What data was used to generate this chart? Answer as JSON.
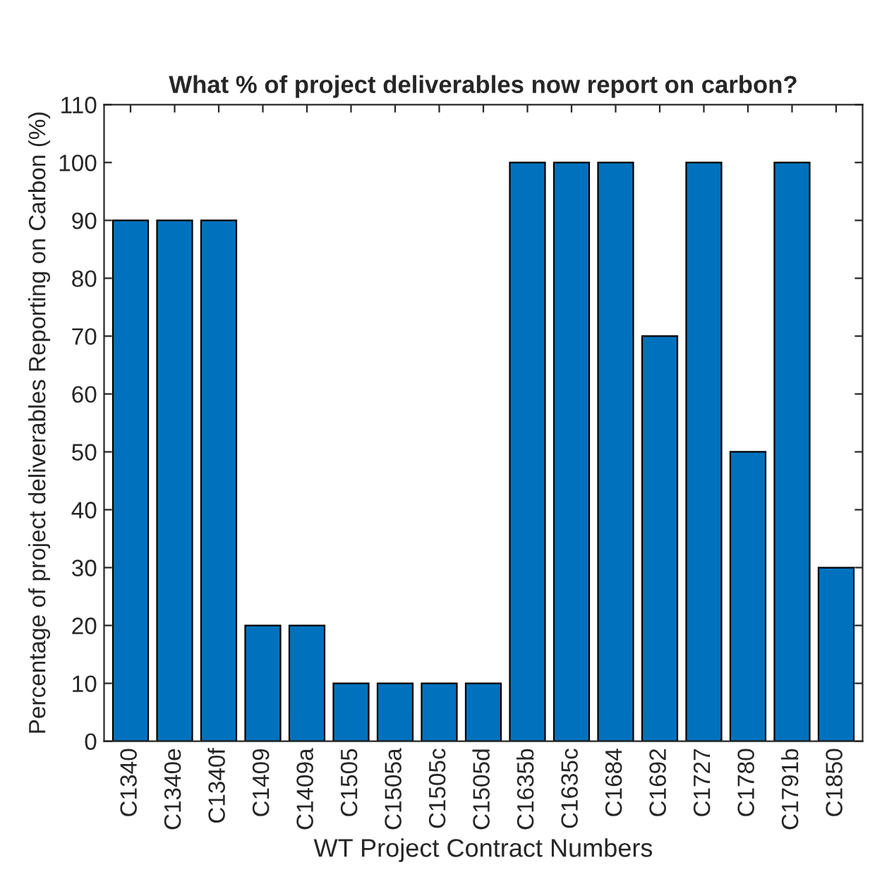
{
  "chart_data": {
    "type": "bar",
    "title": "What % of project deliverables now report on carbon?",
    "xlabel": "WT Project Contract Numbers",
    "ylabel": "Percentage of project deliverables Reporting on Carbon (%)",
    "categories": [
      "C1340",
      "C1340e",
      "C1340f",
      "C1409",
      "C1409a",
      "C1505",
      "C1505a",
      "C1505c",
      "C1505d",
      "C1635b",
      "C1635c",
      "C1684",
      "C1692",
      "C1727",
      "C1780",
      "C1791b",
      "C1850"
    ],
    "values": [
      90,
      90,
      90,
      20,
      20,
      10,
      10,
      10,
      10,
      100,
      100,
      100,
      70,
      100,
      50,
      100,
      30
    ],
    "color": "#0072bd",
    "ylim": [
      0,
      110
    ],
    "yticks": [
      0,
      10,
      20,
      30,
      40,
      50,
      60,
      70,
      80,
      90,
      100,
      110
    ],
    "grid": false
  }
}
